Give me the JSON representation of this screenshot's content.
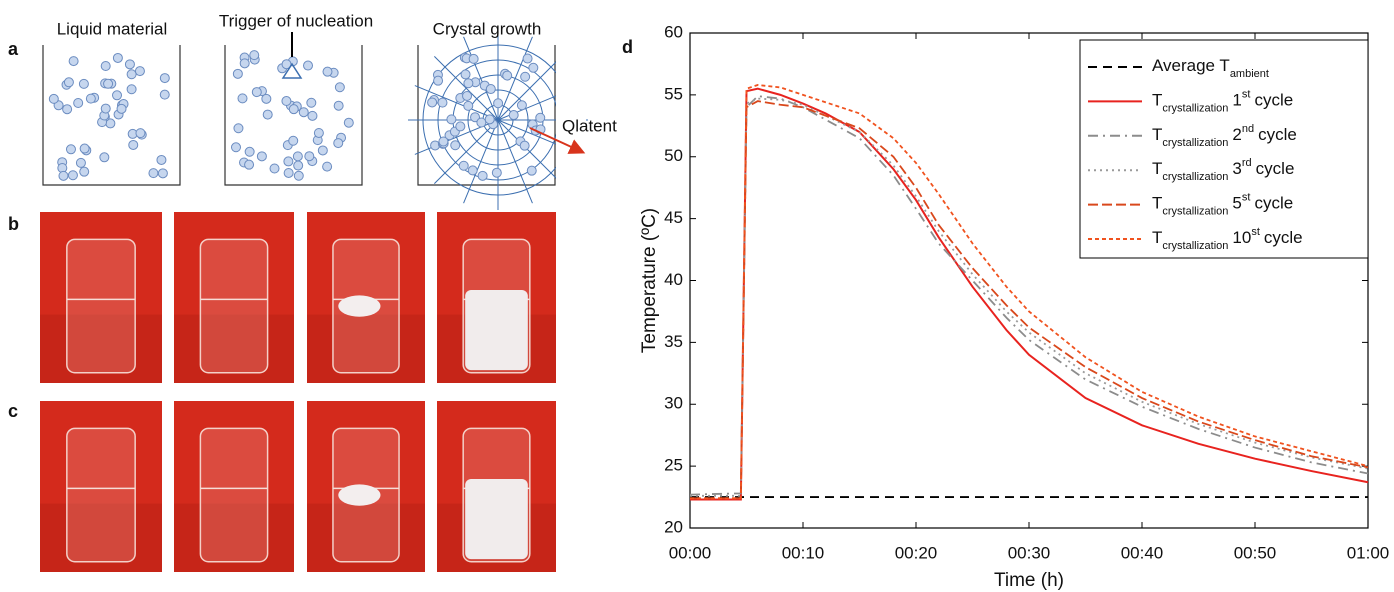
{
  "panels": {
    "a": {
      "label": "a",
      "titles": [
        "Liquid material",
        "Trigger of nucleation",
        "Crystal growth"
      ],
      "arrow_label": "Qlatent"
    },
    "b": {
      "label": "b"
    },
    "c": {
      "label": "c"
    },
    "d": {
      "label": "d"
    }
  },
  "chart_data": {
    "type": "line",
    "xlabel": "Time (h)",
    "ylabel": "Temperature (ºC)",
    "xlim": [
      0,
      60
    ],
    "xticks": [
      {
        "value": 0,
        "label": "00:00"
      },
      {
        "value": 10,
        "label": "00:10"
      },
      {
        "value": 20,
        "label": "00:20"
      },
      {
        "value": 30,
        "label": "00:30"
      },
      {
        "value": 40,
        "label": "00:40"
      },
      {
        "value": 50,
        "label": "00:50"
      },
      {
        "value": 60,
        "label": "01:00"
      }
    ],
    "ylim": [
      20,
      60
    ],
    "yticks": [
      20,
      25,
      30,
      35,
      40,
      45,
      50,
      55,
      60
    ],
    "legend": "upper-right",
    "series": [
      {
        "name": "Average T",
        "name_sub": "ambient",
        "color": "#000000",
        "line_style": "dashed",
        "x": [
          0,
          60
        ],
        "values": [
          22.5,
          22.5
        ]
      },
      {
        "name": "T",
        "name_sub": "crystallization",
        "name_ord": "1",
        "name_sup": "st",
        "name_tail": "cycle",
        "color": "#e8231f",
        "line_style": "solid",
        "x": [
          0,
          4.5,
          5,
          6,
          8,
          10,
          12,
          15,
          18,
          20,
          22,
          25,
          28,
          30,
          35,
          40,
          45,
          50,
          55,
          60
        ],
        "values": [
          22.3,
          22.3,
          55.3,
          55.5,
          55.0,
          54.3,
          53.5,
          52.0,
          49.0,
          46.5,
          43.5,
          39.5,
          36.0,
          34.0,
          30.5,
          28.3,
          26.8,
          25.6,
          24.6,
          23.7
        ]
      },
      {
        "name": "T",
        "name_sub": "crystallization",
        "name_ord": "2",
        "name_sup": "nd",
        "name_tail": "cycle",
        "color": "#8c8c8c",
        "line_style": "dashdot",
        "x": [
          0,
          4.5,
          5,
          6,
          8,
          10,
          15,
          18,
          20,
          22,
          25,
          28,
          30,
          35,
          40,
          45,
          50,
          55,
          60
        ],
        "values": [
          22.7,
          22.8,
          54.0,
          54.9,
          54.7,
          54.0,
          51.5,
          48.5,
          45.8,
          43.0,
          40.0,
          37.0,
          35.2,
          32.0,
          29.8,
          28.0,
          26.5,
          25.3,
          24.4
        ]
      },
      {
        "name": "T",
        "name_sub": "crystallization",
        "name_ord": "3",
        "name_sup": "rd",
        "name_tail": "cycle",
        "color": "#9a9a9a",
        "line_style": "dotted",
        "x": [
          0,
          4.5,
          5,
          6,
          8,
          10,
          15,
          18,
          20,
          22,
          25,
          28,
          30,
          35,
          40,
          45,
          50,
          55,
          60
        ],
        "values": [
          22.6,
          22.6,
          54.3,
          54.7,
          54.6,
          54.2,
          52.0,
          49.3,
          46.8,
          44.0,
          40.5,
          37.5,
          35.8,
          32.5,
          30.2,
          28.4,
          26.9,
          25.7,
          24.8
        ]
      },
      {
        "name": "T",
        "name_sub": "crystallization",
        "name_ord": "5",
        "name_sup": "st",
        "name_tail": "cycle",
        "color": "#d9481c",
        "line_style": "longdash",
        "x": [
          0,
          4.5,
          5,
          6,
          8,
          10,
          15,
          18,
          20,
          22,
          25,
          28,
          30,
          35,
          40,
          45,
          50,
          55,
          60
        ],
        "values": [
          22.4,
          22.4,
          54.0,
          54.5,
          54.2,
          54.0,
          52.3,
          50.0,
          47.5,
          44.5,
          41.0,
          38.0,
          36.2,
          33.0,
          30.5,
          28.6,
          27.1,
          25.8,
          24.9
        ]
      },
      {
        "name": "T",
        "name_sub": "crystallization",
        "name_ord": "10",
        "name_sup": "st",
        "name_tail": "cycle",
        "color": "#f0521e",
        "line_style": "shortdash",
        "x": [
          0,
          4.5,
          5,
          6,
          8,
          10,
          15,
          18,
          20,
          22,
          25,
          28,
          30,
          35,
          40,
          45,
          50,
          55,
          60
        ],
        "values": [
          22.4,
          22.4,
          55.5,
          55.8,
          55.6,
          55.0,
          53.5,
          51.5,
          49.5,
          47.0,
          43.0,
          39.5,
          37.5,
          33.8,
          31.0,
          29.0,
          27.4,
          26.2,
          25.0
        ]
      }
    ]
  }
}
